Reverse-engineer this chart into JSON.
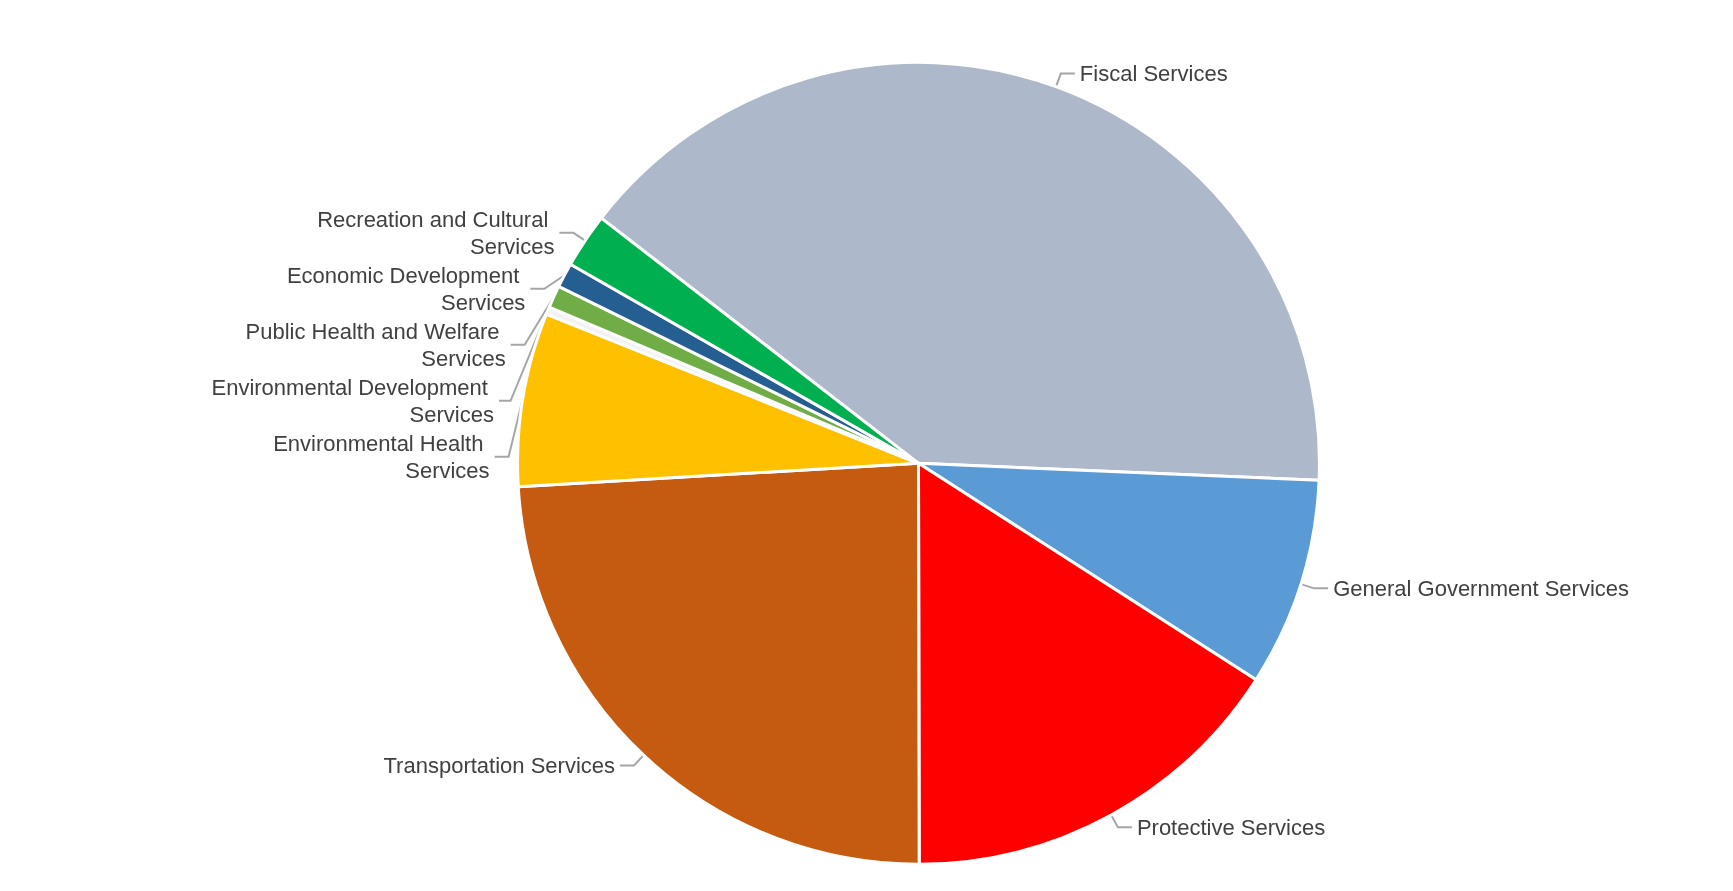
{
  "chart_data": {
    "type": "pie",
    "categories": [
      "Fiscal Services",
      "General Government Services",
      "Protective Services",
      "Transportation Services",
      "Environmental Health Services",
      "Environmental Development Services",
      "Public Health and Welfare Services",
      "Economic Development Services",
      "Recreation and Cultural Services"
    ],
    "values": [
      40.2,
      8.4,
      15.9,
      24.1,
      7.0,
      0.3,
      0.9,
      1.0,
      2.2
    ],
    "colors": [
      "#adb9ca",
      "#5b9bd5",
      "#ff0000",
      "#c55a11",
      "#ffc000",
      "#f2f2f2",
      "#70ad47",
      "#255e91",
      "#00b050"
    ],
    "legend": false
  }
}
